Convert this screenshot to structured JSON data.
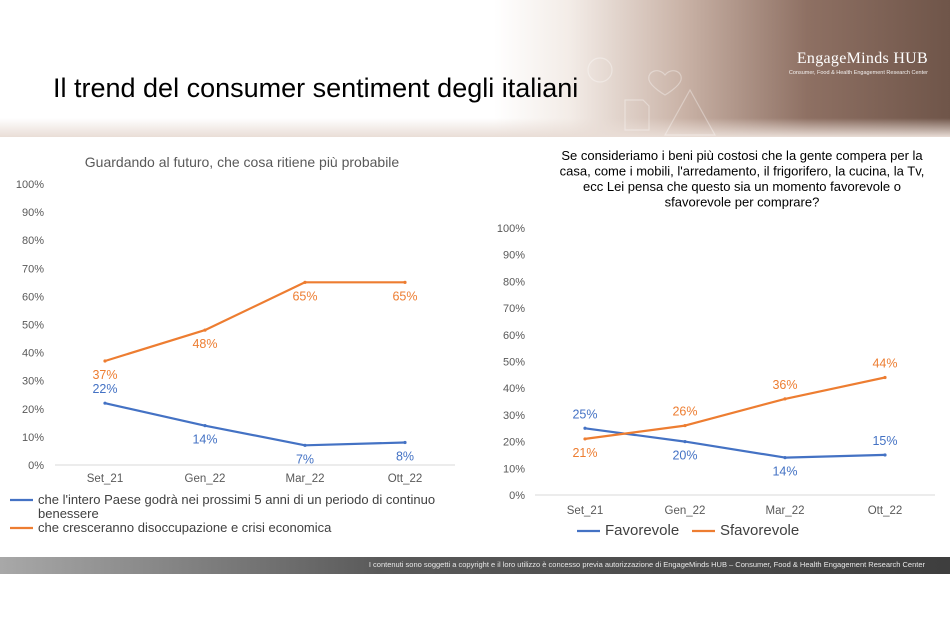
{
  "page": {
    "title": "Il trend del consumer sentiment degli italiani",
    "brand_name": "EngageMinds HUB",
    "brand_tagline": "Consumer, Food & Health Engagement Research Center",
    "footer": "I contenuti sono soggetti a copyright e il loro utilizzo è concesso previa autorizzazione di EngageMinds HUB – Consumer, Food & Health Engagement Research Center"
  },
  "colors": {
    "blue": "#4472c4",
    "orange": "#ed7d31",
    "axis_text": "#595959",
    "grid": "#d9d9d9"
  },
  "chart_data": [
    {
      "type": "line",
      "title": "Guardando al futuro, che cosa ritiene più probabile",
      "title_lines": [
        "Guardando al futuro, che cosa ritiene più probabile"
      ],
      "categories": [
        "Set_21",
        "Gen_22",
        "Mar_22",
        "Ott_22"
      ],
      "y_ticks": [
        "100%",
        "90%",
        "80%",
        "70%",
        "60%",
        "50%",
        "40%",
        "30%",
        "20%",
        "10%",
        "0%"
      ],
      "ylim": [
        0,
        100
      ],
      "grid": false,
      "legend_position": "bottom",
      "series": [
        {
          "name": "che l'intero Paese godrà nei prossimi 5 anni di un periodo di continuo benessere",
          "legend_lines": [
            "che l'intero Paese godrà nei prossimi 5 anni di un periodo di continuo",
            "benessere"
          ],
          "values": [
            22,
            14,
            7,
            8
          ],
          "labels": [
            "22%",
            "14%",
            "7%",
            "8%"
          ],
          "color": "#4472c4"
        },
        {
          "name": "che cresceranno disoccupazione e crisi economica",
          "legend_lines": [
            "che cresceranno disoccupazione e crisi economica"
          ],
          "values": [
            37,
            48,
            65,
            65
          ],
          "labels": [
            "37%",
            "48%",
            "65%",
            "65%"
          ],
          "color": "#ed7d31"
        }
      ]
    },
    {
      "type": "line",
      "title": "Se consideriamo i beni più costosi che la gente compera per la casa, come i mobili, l'arredamento, il frigorifero, la cucina, la Tv, ecc Lei pensa che questo sia un momento favorevole o sfavorevole per comprare?",
      "title_lines": [
        "Se consideriamo i beni più costosi che la gente compera per la",
        "casa, come i mobili, l'arredamento, il frigorifero, la cucina, la Tv,",
        "ecc Lei pensa che questo sia un momento favorevole o",
        "sfavorevole per comprare?"
      ],
      "categories": [
        "Set_21",
        "Gen_22",
        "Mar_22",
        "Ott_22"
      ],
      "y_ticks": [
        "100%",
        "90%",
        "80%",
        "70%",
        "60%",
        "50%",
        "40%",
        "30%",
        "20%",
        "10%",
        "0%"
      ],
      "ylim": [
        0,
        100
      ],
      "grid": false,
      "legend_position": "bottom",
      "series": [
        {
          "name": "Favorevole",
          "legend_lines": [
            "Favorevole"
          ],
          "values": [
            25,
            20,
            14,
            15
          ],
          "labels": [
            "25%",
            "20%",
            "14%",
            "15%"
          ],
          "color": "#4472c4"
        },
        {
          "name": "Sfavorevole",
          "legend_lines": [
            "Sfavorevole"
          ],
          "values": [
            21,
            26,
            36,
            44
          ],
          "labels": [
            "21%",
            "26%",
            "36%",
            "44%"
          ],
          "color": "#ed7d31"
        }
      ]
    }
  ]
}
